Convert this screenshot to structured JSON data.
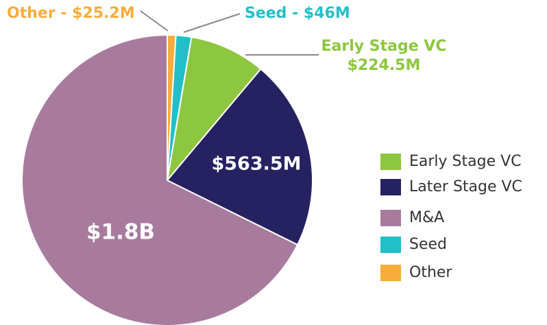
{
  "chart_data": {
    "type": "pie",
    "categories": [
      "Early Stage VC",
      "Later Stage VC",
      "M&A",
      "Seed",
      "Other"
    ],
    "values": [
      224.5,
      563.5,
      1800,
      46,
      25.2
    ],
    "value_labels": [
      "$224.5M",
      "$563.5M",
      "$1.8B",
      "$46M",
      "$25.2M"
    ],
    "colors": [
      "#8dc63f",
      "#262262",
      "#a87b9e",
      "#22bfc9",
      "#f7ac3c"
    ],
    "label_separator": " - ",
    "legend": "right"
  }
}
